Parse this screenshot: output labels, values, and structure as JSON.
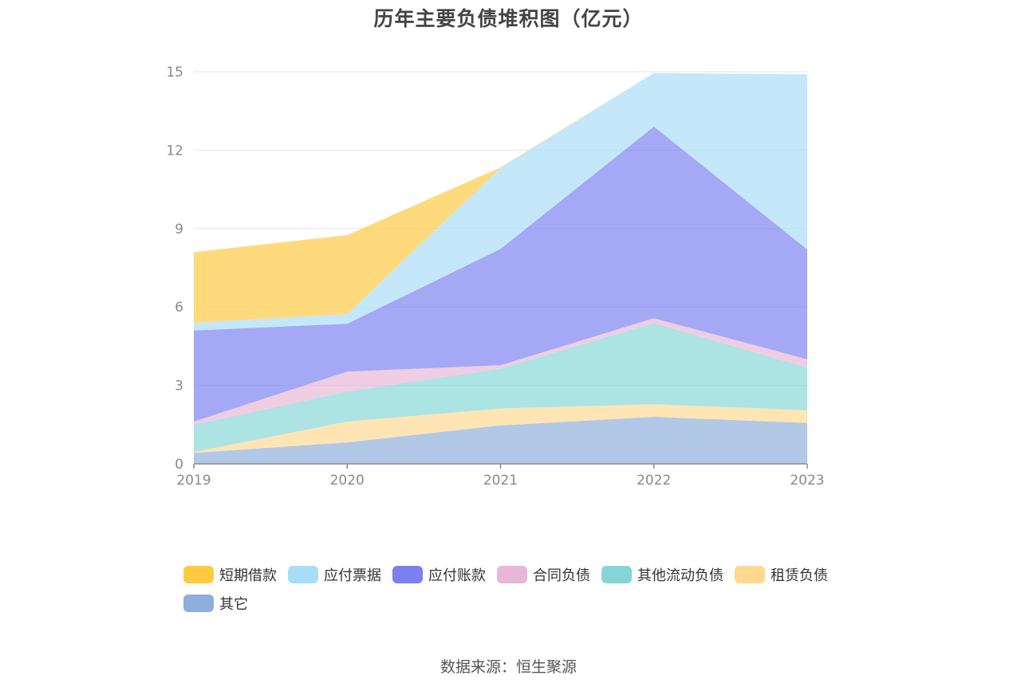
{
  "title": "历年主要负债堆积图（亿元）",
  "source": "数据来源：恒生聚源",
  "chart_data": {
    "type": "area",
    "stacked": true,
    "title": "历年主要负债堆积图（亿元）",
    "x": [
      "2019",
      "2020",
      "2021",
      "2022",
      "2023"
    ],
    "ylim": [
      0,
      15
    ],
    "yticks": [
      "0",
      "3",
      "6",
      "9",
      "12",
      "15"
    ],
    "grid": true,
    "legend_position": "bottom",
    "series": [
      {
        "name": "其它",
        "color": "#8eaedb",
        "values": [
          0.42,
          0.82,
          1.47,
          1.8,
          1.56
        ]
      },
      {
        "name": "租赁负债",
        "color": "#ffd88f",
        "values": [
          0.03,
          0.8,
          0.65,
          0.48,
          0.49
        ]
      },
      {
        "name": "其他流动负债",
        "color": "#84d6d6",
        "values": [
          1.05,
          1.14,
          1.52,
          3.1,
          1.63
        ]
      },
      {
        "name": "合同负债",
        "color": "#e8b6d6",
        "values": [
          0.12,
          0.77,
          0.13,
          0.19,
          0.32
        ]
      },
      {
        "name": "应付账款",
        "color": "#7b7ff0",
        "values": [
          3.48,
          1.83,
          4.45,
          7.33,
          4.2
        ]
      },
      {
        "name": "应付票据",
        "color": "#a8ddf8",
        "values": [
          0.3,
          0.37,
          3.1,
          2.05,
          6.7
        ]
      },
      {
        "name": "短期借款",
        "color": "#ffc940",
        "values": [
          2.7,
          3.02,
          0.02,
          0.0,
          0.0
        ]
      }
    ]
  },
  "legend": [
    {
      "label": "短期借款",
      "color": "#ffc940"
    },
    {
      "label": "应付票据",
      "color": "#a8ddf8"
    },
    {
      "label": "应付账款",
      "color": "#7b7ff0"
    },
    {
      "label": "合同负债",
      "color": "#e8b6d6"
    },
    {
      "label": "其他流动负债",
      "color": "#84d6d6"
    },
    {
      "label": "租赁负债",
      "color": "#ffd88f"
    },
    {
      "label": "其它",
      "color": "#8eaedb"
    }
  ]
}
